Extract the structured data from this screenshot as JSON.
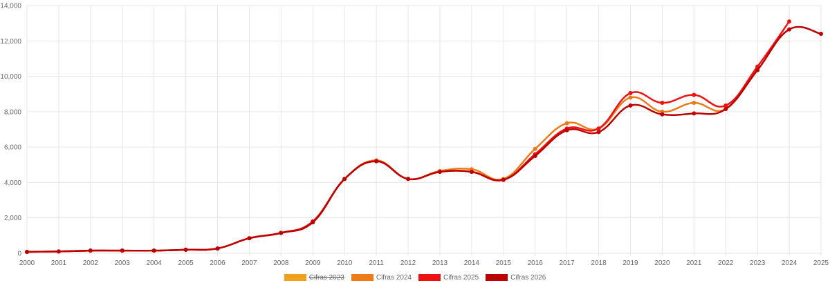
{
  "chart_data": {
    "type": "line",
    "title": "",
    "xlabel": "",
    "ylabel": "",
    "ylim": [
      0,
      14000
    ],
    "y_ticks": [
      "0",
      "2,000",
      "4,000",
      "6,000",
      "8,000",
      "10,000",
      "12,000",
      "14,000"
    ],
    "x": [
      "2000",
      "2001",
      "2002",
      "2003",
      "2004",
      "2005",
      "2006",
      "2007",
      "2008",
      "2009",
      "2010",
      "2011",
      "2012",
      "2013",
      "2014",
      "2015",
      "2016",
      "2017",
      "2018",
      "2019",
      "2020",
      "2021",
      "2022",
      "2023",
      "2024",
      "2025"
    ],
    "grid": true,
    "legend_position": "bottom",
    "series": [
      {
        "name": "Cifras 2023",
        "color": "#f0a01e",
        "hidden": true,
        "values": [
          80,
          100,
          150,
          150,
          150,
          200,
          270,
          850,
          1150,
          1800,
          4200,
          5250,
          4200,
          4650,
          4750,
          4200,
          5900,
          7350,
          7050,
          8800,
          8000,
          8500,
          8150,
          null,
          null,
          null
        ]
      },
      {
        "name": "Cifras 2024",
        "color": "#ee7a1a",
        "hidden": false,
        "values": [
          80,
          100,
          150,
          150,
          150,
          200,
          270,
          850,
          1150,
          1800,
          4200,
          5250,
          4200,
          4650,
          4750,
          4200,
          5900,
          7350,
          7050,
          8800,
          8000,
          8500,
          8150,
          10500,
          null,
          null
        ]
      },
      {
        "name": "Cifras 2025",
        "color": "#ee1111",
        "hidden": false,
        "values": [
          80,
          100,
          150,
          150,
          150,
          200,
          270,
          850,
          1150,
          1800,
          4200,
          5200,
          4200,
          4600,
          4600,
          4150,
          5600,
          7050,
          7050,
          9050,
          8500,
          8950,
          8350,
          10550,
          13100,
          null
        ]
      },
      {
        "name": "Cifras 2026",
        "color": "#bb0000",
        "hidden": false,
        "values": [
          80,
          100,
          150,
          150,
          150,
          200,
          270,
          850,
          1150,
          1750,
          4200,
          5200,
          4200,
          4600,
          4600,
          4150,
          5500,
          6950,
          6850,
          8350,
          7850,
          7900,
          8150,
          10350,
          12650,
          12400
        ]
      }
    ]
  }
}
